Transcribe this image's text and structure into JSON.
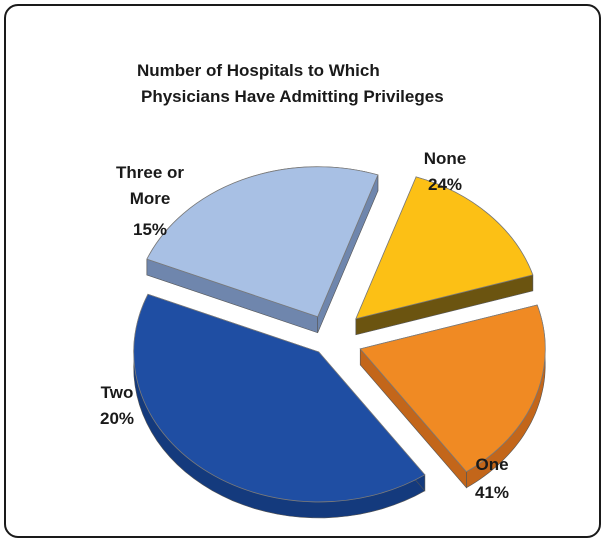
{
  "chart_data": {
    "type": "pie",
    "title_line1": "Number of Hospitals to Which",
    "title_line2": "Physicians Have Admitting Privileges",
    "slices": [
      {
        "name": "One",
        "value": 41,
        "label": "41%",
        "color": "#1f4ea3",
        "side": "#143a7d"
      },
      {
        "name": "None",
        "value": 24,
        "label": "24%",
        "color": "#a8c0e4",
        "side": "#6f86ad"
      },
      {
        "name": "Three or More",
        "value": 15,
        "label": "15%",
        "color": "#fcc015",
        "side": "#6b5410"
      },
      {
        "name": "Two",
        "value": 20,
        "label": "20%",
        "color": "#f08a23",
        "side": "#c3661a"
      }
    ],
    "legend": "none"
  },
  "labels": {
    "none_name": "None",
    "none_pct": "24%",
    "one_name": "One",
    "one_pct": "41%",
    "two_name": "Two",
    "two_pct": "20%",
    "three_name_1": "Three or",
    "three_name_2": "More",
    "three_pct": "15%"
  }
}
